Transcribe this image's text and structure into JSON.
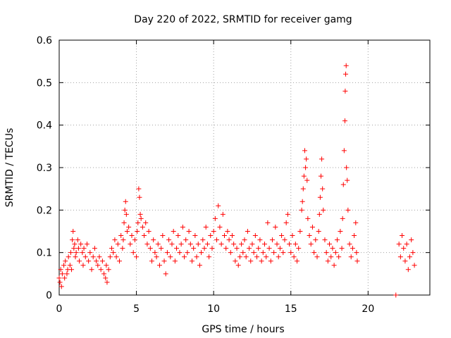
{
  "chart_data": {
    "type": "scatter",
    "title": "Day 220 of 2022, SRMTID for receiver gamg",
    "xlabel": "GPS time / hours",
    "ylabel": "SRMTID / TECUs",
    "xlim": [
      0,
      24
    ],
    "ylim": [
      0,
      0.6
    ],
    "xticks": [
      0,
      5,
      10,
      15,
      20
    ],
    "yticks": [
      0,
      0.1,
      0.2,
      0.3,
      0.4,
      0.5,
      0.6
    ],
    "xtick_labels": [
      "0",
      "5",
      "10",
      "15",
      "20"
    ],
    "ytick_labels": [
      "0",
      "0.1",
      "0.2",
      "0.3",
      "0.4",
      "0.5",
      "0.6"
    ],
    "grid": true,
    "marker": "plus",
    "color": "#ff0000",
    "series": [
      {
        "name": "SRMTID",
        "points": [
          [
            0.0,
            0.04
          ],
          [
            0.05,
            0.03
          ],
          [
            0.1,
            0.06
          ],
          [
            0.15,
            0.02
          ],
          [
            0.2,
            0.05
          ],
          [
            0.3,
            0.07
          ],
          [
            0.35,
            0.04
          ],
          [
            0.4,
            0.08
          ],
          [
            0.5,
            0.05
          ],
          [
            0.55,
            0.06
          ],
          [
            0.6,
            0.09
          ],
          [
            0.7,
            0.07
          ],
          [
            0.75,
            0.1
          ],
          [
            0.8,
            0.06
          ],
          [
            0.85,
            0.13
          ],
          [
            0.9,
            0.15
          ],
          [
            0.95,
            0.11
          ],
          [
            1.0,
            0.12
          ],
          [
            1.05,
            0.09
          ],
          [
            1.1,
            0.1
          ],
          [
            1.2,
            0.13
          ],
          [
            1.25,
            0.11
          ],
          [
            1.3,
            0.08
          ],
          [
            1.4,
            0.12
          ],
          [
            1.5,
            0.1
          ],
          [
            1.55,
            0.07
          ],
          [
            1.6,
            0.11
          ],
          [
            1.7,
            0.09
          ],
          [
            1.8,
            0.12
          ],
          [
            1.9,
            0.08
          ],
          [
            2.0,
            0.1
          ],
          [
            2.1,
            0.06
          ],
          [
            2.2,
            0.09
          ],
          [
            2.3,
            0.11
          ],
          [
            2.4,
            0.08
          ],
          [
            2.5,
            0.07
          ],
          [
            2.6,
            0.09
          ],
          [
            2.7,
            0.06
          ],
          [
            2.8,
            0.08
          ],
          [
            2.9,
            0.05
          ],
          [
            3.0,
            0.04
          ],
          [
            3.05,
            0.07
          ],
          [
            3.1,
            0.03
          ],
          [
            3.2,
            0.06
          ],
          [
            3.3,
            0.09
          ],
          [
            3.4,
            0.11
          ],
          [
            3.5,
            0.1
          ],
          [
            3.6,
            0.13
          ],
          [
            3.7,
            0.09
          ],
          [
            3.8,
            0.12
          ],
          [
            3.9,
            0.08
          ],
          [
            4.0,
            0.14
          ],
          [
            4.1,
            0.11
          ],
          [
            4.15,
            0.13
          ],
          [
            4.2,
            0.17
          ],
          [
            4.25,
            0.2
          ],
          [
            4.3,
            0.22
          ],
          [
            4.35,
            0.19
          ],
          [
            4.4,
            0.15
          ],
          [
            4.5,
            0.16
          ],
          [
            4.6,
            0.12
          ],
          [
            4.7,
            0.14
          ],
          [
            4.8,
            0.1
          ],
          [
            4.9,
            0.13
          ],
          [
            5.0,
            0.09
          ],
          [
            5.05,
            0.15
          ],
          [
            5.1,
            0.17
          ],
          [
            5.15,
            0.25
          ],
          [
            5.2,
            0.23
          ],
          [
            5.25,
            0.19
          ],
          [
            5.3,
            0.18
          ],
          [
            5.4,
            0.16
          ],
          [
            5.5,
            0.14
          ],
          [
            5.6,
            0.17
          ],
          [
            5.7,
            0.12
          ],
          [
            5.8,
            0.15
          ],
          [
            5.9,
            0.11
          ],
          [
            6.0,
            0.08
          ],
          [
            6.1,
            0.13
          ],
          [
            6.2,
            0.1
          ],
          [
            6.3,
            0.09
          ],
          [
            6.4,
            0.12
          ],
          [
            6.5,
            0.07
          ],
          [
            6.6,
            0.11
          ],
          [
            6.7,
            0.14
          ],
          [
            6.8,
            0.08
          ],
          [
            6.9,
            0.05
          ],
          [
            7.0,
            0.1
          ],
          [
            7.1,
            0.13
          ],
          [
            7.2,
            0.09
          ],
          [
            7.3,
            0.12
          ],
          [
            7.4,
            0.15
          ],
          [
            7.5,
            0.08
          ],
          [
            7.6,
            0.11
          ],
          [
            7.7,
            0.14
          ],
          [
            7.8,
            0.1
          ],
          [
            7.9,
            0.12
          ],
          [
            8.0,
            0.16
          ],
          [
            8.1,
            0.09
          ],
          [
            8.2,
            0.13
          ],
          [
            8.3,
            0.1
          ],
          [
            8.4,
            0.15
          ],
          [
            8.5,
            0.12
          ],
          [
            8.6,
            0.08
          ],
          [
            8.7,
            0.11
          ],
          [
            8.8,
            0.14
          ],
          [
            8.9,
            0.09
          ],
          [
            9.0,
            0.12
          ],
          [
            9.1,
            0.07
          ],
          [
            9.2,
            0.1
          ],
          [
            9.3,
            0.13
          ],
          [
            9.4,
            0.11
          ],
          [
            9.5,
            0.16
          ],
          [
            9.6,
            0.12
          ],
          [
            9.7,
            0.09
          ],
          [
            9.8,
            0.14
          ],
          [
            9.9,
            0.11
          ],
          [
            10.0,
            0.15
          ],
          [
            10.1,
            0.18
          ],
          [
            10.2,
            0.13
          ],
          [
            10.3,
            0.21
          ],
          [
            10.4,
            0.16
          ],
          [
            10.5,
            0.12
          ],
          [
            10.6,
            0.19
          ],
          [
            10.7,
            0.14
          ],
          [
            10.8,
            0.11
          ],
          [
            10.9,
            0.15
          ],
          [
            11.0,
            0.13
          ],
          [
            11.1,
            0.1
          ],
          [
            11.2,
            0.14
          ],
          [
            11.3,
            0.12
          ],
          [
            11.4,
            0.08
          ],
          [
            11.5,
            0.11
          ],
          [
            11.6,
            0.07
          ],
          [
            11.7,
            0.09
          ],
          [
            11.8,
            0.12
          ],
          [
            11.9,
            0.1
          ],
          [
            12.0,
            0.13
          ],
          [
            12.1,
            0.09
          ],
          [
            12.2,
            0.15
          ],
          [
            12.3,
            0.11
          ],
          [
            12.4,
            0.08
          ],
          [
            12.5,
            0.12
          ],
          [
            12.6,
            0.1
          ],
          [
            12.7,
            0.14
          ],
          [
            12.8,
            0.09
          ],
          [
            12.9,
            0.11
          ],
          [
            13.0,
            0.13
          ],
          [
            13.1,
            0.08
          ],
          [
            13.2,
            0.1
          ],
          [
            13.3,
            0.12
          ],
          [
            13.4,
            0.09
          ],
          [
            13.5,
            0.17
          ],
          [
            13.6,
            0.11
          ],
          [
            13.7,
            0.08
          ],
          [
            13.8,
            0.13
          ],
          [
            13.9,
            0.1
          ],
          [
            14.0,
            0.16
          ],
          [
            14.1,
            0.12
          ],
          [
            14.2,
            0.09
          ],
          [
            14.3,
            0.11
          ],
          [
            14.4,
            0.14
          ],
          [
            14.5,
            0.1
          ],
          [
            14.6,
            0.13
          ],
          [
            14.7,
            0.17
          ],
          [
            14.8,
            0.19
          ],
          [
            14.9,
            0.12
          ],
          [
            15.0,
            0.1
          ],
          [
            15.1,
            0.14
          ],
          [
            15.2,
            0.09
          ],
          [
            15.3,
            0.12
          ],
          [
            15.4,
            0.08
          ],
          [
            15.5,
            0.11
          ],
          [
            15.6,
            0.15
          ],
          [
            15.7,
            0.2
          ],
          [
            15.75,
            0.22
          ],
          [
            15.8,
            0.25
          ],
          [
            15.85,
            0.28
          ],
          [
            15.9,
            0.34
          ],
          [
            15.95,
            0.3
          ],
          [
            16.0,
            0.32
          ],
          [
            16.05,
            0.27
          ],
          [
            16.1,
            0.18
          ],
          [
            16.2,
            0.14
          ],
          [
            16.3,
            0.12
          ],
          [
            16.4,
            0.16
          ],
          [
            16.5,
            0.1
          ],
          [
            16.6,
            0.13
          ],
          [
            16.7,
            0.09
          ],
          [
            16.8,
            0.15
          ],
          [
            16.85,
            0.19
          ],
          [
            16.9,
            0.23
          ],
          [
            16.95,
            0.28
          ],
          [
            17.0,
            0.32
          ],
          [
            17.05,
            0.25
          ],
          [
            17.1,
            0.2
          ],
          [
            17.2,
            0.13
          ],
          [
            17.3,
            0.1
          ],
          [
            17.4,
            0.08
          ],
          [
            17.5,
            0.12
          ],
          [
            17.6,
            0.09
          ],
          [
            17.7,
            0.11
          ],
          [
            17.8,
            0.07
          ],
          [
            17.9,
            0.1
          ],
          [
            18.0,
            0.13
          ],
          [
            18.1,
            0.09
          ],
          [
            18.2,
            0.15
          ],
          [
            18.3,
            0.11
          ],
          [
            18.35,
            0.18
          ],
          [
            18.4,
            0.26
          ],
          [
            18.45,
            0.34
          ],
          [
            18.5,
            0.41
          ],
          [
            18.52,
            0.48
          ],
          [
            18.55,
            0.52
          ],
          [
            18.58,
            0.54
          ],
          [
            18.6,
            0.3
          ],
          [
            18.65,
            0.27
          ],
          [
            18.7,
            0.2
          ],
          [
            18.8,
            0.12
          ],
          [
            18.9,
            0.09
          ],
          [
            19.0,
            0.11
          ],
          [
            19.1,
            0.14
          ],
          [
            19.2,
            0.17
          ],
          [
            19.25,
            0.1
          ],
          [
            19.3,
            0.08
          ],
          [
            21.8,
            0.0
          ],
          [
            22.0,
            0.12
          ],
          [
            22.1,
            0.09
          ],
          [
            22.2,
            0.14
          ],
          [
            22.3,
            0.11
          ],
          [
            22.4,
            0.08
          ],
          [
            22.5,
            0.12
          ],
          [
            22.6,
            0.06
          ],
          [
            22.7,
            0.09
          ],
          [
            22.8,
            0.13
          ],
          [
            22.9,
            0.1
          ],
          [
            23.0,
            0.07
          ]
        ]
      }
    ]
  }
}
